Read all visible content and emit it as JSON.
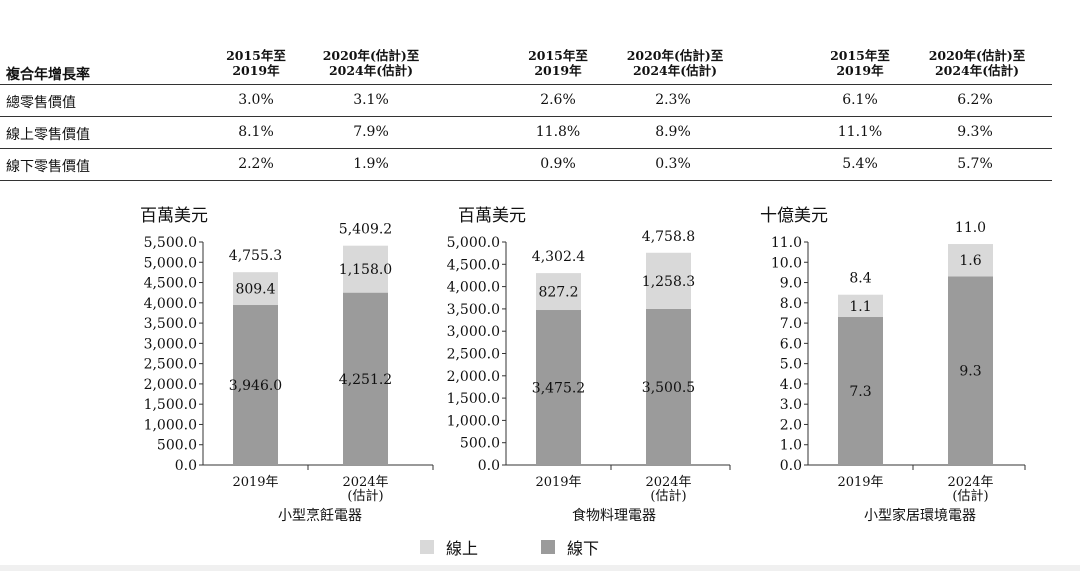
{
  "table": {
    "title": "複合年增長率",
    "period_headers": [
      "2015年至\n2019年",
      "2020年(估計)至\n2024年(估計)"
    ],
    "rows": [
      {
        "label": "總零售價值",
        "values": [
          "3.0%",
          "3.1%",
          "2.6%",
          "2.3%",
          "6.1%",
          "6.2%"
        ]
      },
      {
        "label": "線上零售價值",
        "values": [
          "8.1%",
          "7.9%",
          "11.8%",
          "8.9%",
          "11.1%",
          "9.3%"
        ]
      },
      {
        "label": "線下零售價值",
        "values": [
          "2.2%",
          "1.9%",
          "0.9%",
          "0.3%",
          "5.4%",
          "5.7%"
        ]
      }
    ]
  },
  "legend": {
    "online": "線上",
    "offline": "線下",
    "online_color": "#d9d9d9",
    "offline_color": "#9b9b9b"
  },
  "chart_data": [
    {
      "type": "bar",
      "stacked": true,
      "title": "小型烹飪電器",
      "unit": "百萬美元",
      "categories": [
        "2019年",
        "2024年\n(估計)"
      ],
      "series": [
        {
          "name": "線下",
          "values": [
            3946.0,
            4251.2
          ],
          "labels": [
            "3,946.0",
            "4,251.2"
          ]
        },
        {
          "name": "線上",
          "values": [
            809.4,
            1158.0
          ],
          "labels": [
            "809.4",
            "1,158.0"
          ]
        }
      ],
      "totals": [
        "4,755.3",
        "5,409.2"
      ],
      "ylim": [
        0,
        5500
      ],
      "yticks": [
        "5,500.0",
        "5,000.0",
        "4,500.0",
        "4,000.0",
        "3,500.0",
        "3,000.0",
        "2,500.0",
        "2,000.0",
        "1,500.0",
        "1,000.0",
        "500.0",
        "0.0"
      ]
    },
    {
      "type": "bar",
      "stacked": true,
      "title": "食物料理電器",
      "unit": "百萬美元",
      "categories": [
        "2019年",
        "2024年\n(估計)"
      ],
      "series": [
        {
          "name": "線下",
          "values": [
            3475.2,
            3500.5
          ],
          "labels": [
            "3,475.2",
            "3,500.5"
          ]
        },
        {
          "name": "線上",
          "values": [
            827.2,
            1258.3
          ],
          "labels": [
            "827.2",
            "1,258.3"
          ]
        }
      ],
      "totals": [
        "4,302.4",
        "4,758.8"
      ],
      "ylim": [
        0,
        5000
      ],
      "yticks": [
        "5,000.0",
        "4,500.0",
        "4,000.0",
        "3,500.0",
        "3,000.0",
        "2,500.0",
        "2,000.0",
        "1,500.0",
        "1,000.0",
        "500.0",
        "0.0"
      ]
    },
    {
      "type": "bar",
      "stacked": true,
      "title": "小型家居環境電器",
      "unit": "十億美元",
      "categories": [
        "2019年",
        "2024年\n(估計)"
      ],
      "series": [
        {
          "name": "線下",
          "values": [
            7.3,
            9.3
          ],
          "labels": [
            "7.3",
            "9.3"
          ]
        },
        {
          "name": "線上",
          "values": [
            1.1,
            1.6
          ],
          "labels": [
            "1.1",
            "1.6"
          ]
        }
      ],
      "totals": [
        "8.4",
        "11.0"
      ],
      "ylim": [
        0,
        11
      ],
      "yticks": [
        "11.0",
        "10.0",
        "9.0",
        "8.0",
        "7.0",
        "6.0",
        "5.0",
        "4.0",
        "3.0",
        "2.0",
        "1.0",
        "0.0"
      ]
    }
  ]
}
